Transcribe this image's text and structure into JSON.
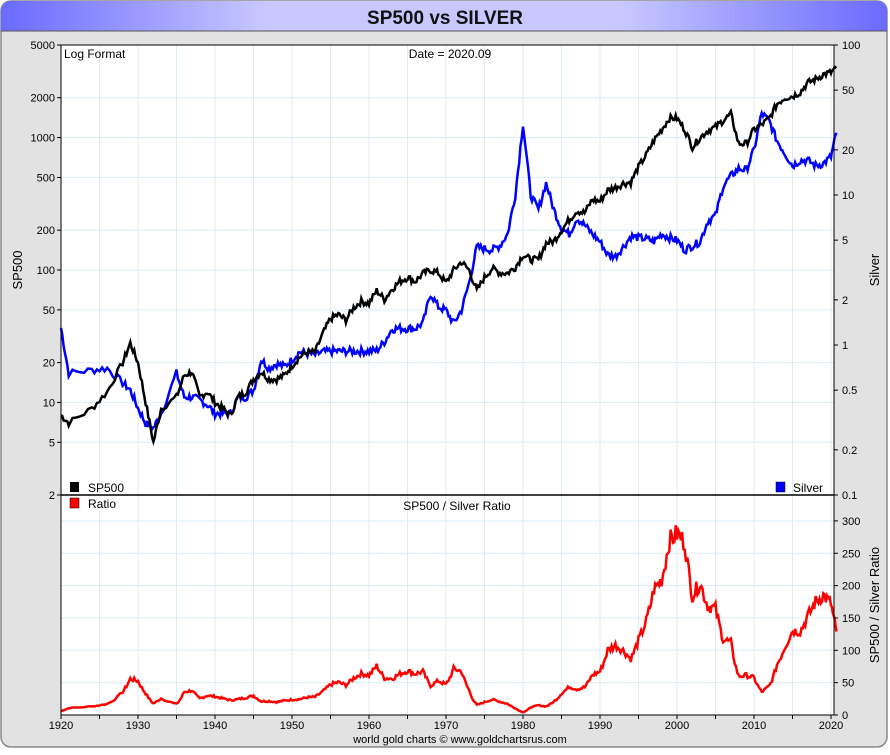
{
  "title": "SP500 vs SILVER",
  "footer": "world gold charts © www.goldchartsrus.com",
  "colors": {
    "sp500": "#000000",
    "silver": "#0000ff",
    "ratio": "#ff0000",
    "grid": "#dcecf8",
    "title_bar": "#8080ff"
  },
  "chart_data": [
    {
      "type": "line",
      "title": "SP500 vs SILVER",
      "annotations": [
        "Log Format",
        "Date = 2020.09"
      ],
      "ylabel": "SP500",
      "y2label": "Silver",
      "yscale": "log",
      "ylim": [
        2,
        5000
      ],
      "y2lim": [
        0.1,
        100
      ],
      "yticks": [
        5000,
        2000,
        1000,
        500,
        200,
        100,
        50,
        20,
        10,
        5,
        2
      ],
      "y2ticks": [
        100,
        50,
        20,
        10,
        5,
        2,
        1,
        0.5,
        0.2,
        0.1
      ],
      "xlim": [
        1920,
        2020.7
      ],
      "grid": true,
      "legend": [
        {
          "name": "SP500",
          "position": "bottom-left"
        },
        {
          "name": "Silver",
          "position": "bottom-right"
        }
      ],
      "x": [
        1920,
        1921,
        1924,
        1926,
        1928,
        1929,
        1930,
        1931,
        1932,
        1933,
        1935,
        1936,
        1937,
        1938,
        1939,
        1940,
        1941,
        1942,
        1943,
        1944,
        1945,
        1946,
        1947,
        1948,
        1949,
        1950,
        1951,
        1952,
        1953,
        1954,
        1955,
        1956,
        1957,
        1958,
        1959,
        1960,
        1961,
        1962,
        1963,
        1964,
        1965,
        1966,
        1967,
        1968,
        1969,
        1970,
        1971,
        1972,
        1973,
        1974,
        1975,
        1976,
        1977,
        1978,
        1979,
        1980,
        1981,
        1982,
        1983,
        1984,
        1985,
        1986,
        1987,
        1988,
        1989,
        1990,
        1991,
        1992,
        1993,
        1994,
        1995,
        1996,
        1997,
        1998,
        1999,
        2000,
        2001,
        2002,
        2003,
        2004,
        2005,
        2006,
        2007,
        2008,
        2009,
        2010,
        2011,
        2012,
        2013,
        2014,
        2015,
        2016,
        2017,
        2018,
        2019,
        2020,
        2020.7
      ],
      "series": [
        {
          "name": "SP500",
          "axis": "left",
          "values": [
            8,
            7,
            9,
            12,
            20,
            28,
            20,
            10,
            5,
            9,
            11,
            16,
            17,
            11,
            12,
            10,
            9,
            8,
            11,
            12,
            15,
            17,
            15,
            15,
            16,
            19,
            22,
            24,
            24,
            33,
            43,
            46,
            42,
            52,
            58,
            56,
            70,
            60,
            72,
            82,
            88,
            82,
            94,
            100,
            95,
            80,
            100,
            115,
            100,
            70,
            88,
            103,
            95,
            95,
            105,
            130,
            120,
            120,
            160,
            165,
            200,
            240,
            280,
            270,
            340,
            330,
            400,
            420,
            450,
            460,
            600,
            740,
            950,
            1150,
            1400,
            1400,
            1150,
            850,
            1000,
            1130,
            1200,
            1350,
            1500,
            900,
            900,
            1150,
            1250,
            1400,
            1800,
            2000,
            2050,
            2200,
            2600,
            2750,
            3000,
            3100,
            3350
          ]
        },
        {
          "name": "Silver",
          "axis": "right",
          "values": [
            1.3,
            0.65,
            0.68,
            0.7,
            0.56,
            0.5,
            0.38,
            0.3,
            0.28,
            0.35,
            0.65,
            0.45,
            0.45,
            0.43,
            0.4,
            0.35,
            0.35,
            0.35,
            0.45,
            0.45,
            0.5,
            0.8,
            0.7,
            0.75,
            0.72,
            0.8,
            0.9,
            0.88,
            0.86,
            0.9,
            0.91,
            0.91,
            0.91,
            0.91,
            0.91,
            0.91,
            0.92,
            1.05,
            1.28,
            1.29,
            1.29,
            1.29,
            1.4,
            2.2,
            1.8,
            1.7,
            1.4,
            1.7,
            2.6,
            4.5,
            4.4,
            4.3,
            4.6,
            5.5,
            10,
            30,
            10,
            8,
            12,
            8,
            6,
            5.5,
            7,
            6.3,
            5.5,
            4.9,
            4,
            3.9,
            4.5,
            5.3,
            5.2,
            5.1,
            4.9,
            5.5,
            5.2,
            5,
            4.3,
            4.6,
            4.9,
            6.7,
            7.3,
            11.5,
            13.4,
            15,
            14.7,
            20,
            35,
            31,
            23,
            19,
            15.7,
            17,
            17,
            15.7,
            16.2,
            18,
            26
          ]
        }
      ]
    },
    {
      "type": "line",
      "title": "SP500 / Silver Ratio",
      "ylabel": "SP500 / Silver Ratio",
      "ylim": [
        0,
        330
      ],
      "yticks": [
        0,
        50,
        100,
        150,
        200,
        250,
        300
      ],
      "xticks": [
        1920,
        1930,
        1940,
        1950,
        1960,
        1970,
        1980,
        1990,
        2000,
        2010,
        2020
      ],
      "legend": [
        {
          "name": "Ratio",
          "position": "top-left"
        }
      ],
      "series": [
        {
          "name": "Ratio",
          "values": "SP500 / Silver"
        }
      ]
    }
  ]
}
